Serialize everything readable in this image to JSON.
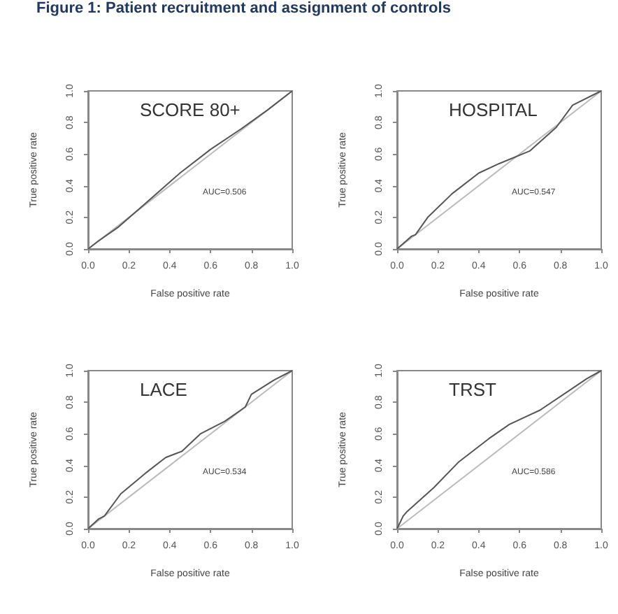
{
  "chart_data": [
    {
      "type": "other",
      "title": "Figure 1: Patient recruitment and assignment of controls"
    },
    {
      "type": "line",
      "title": "SCORE 80+",
      "xlabel": "False positive rate",
      "ylabel": "True positive rate",
      "annotations": [
        "AUC=0.506"
      ],
      "marker": "none",
      "xlim": [
        0,
        1
      ],
      "ylim": [
        0,
        1
      ],
      "xticks": [
        {
          "value": 0,
          "label": "0.0"
        },
        {
          "value": 0.2,
          "label": "0.2"
        },
        {
          "value": 0.4,
          "label": "0.4"
        },
        {
          "value": 0.6,
          "label": "0.6"
        },
        {
          "value": 0.8,
          "label": "0.8"
        },
        {
          "value": 1,
          "label": "1.0"
        }
      ],
      "yticks": [
        {
          "value": 0,
          "label": "0.0"
        },
        {
          "value": 0.2,
          "label": "0.2"
        },
        {
          "value": 0.4,
          "label": "0.4"
        },
        {
          "value": 0.6,
          "label": "0.6"
        },
        {
          "value": 0.8,
          "label": "0.8"
        },
        {
          "value": 1,
          "label": "1.0"
        }
      ],
      "series": [
        {
          "color": "#bbbbbb",
          "x": [
            0,
            1
          ],
          "values": [
            0,
            1
          ]
        },
        {
          "color": "#555555",
          "x": [
            0,
            0.05,
            0.15,
            0.3,
            0.45,
            0.6,
            0.75,
            0.88,
            1
          ],
          "values": [
            0,
            0.05,
            0.14,
            0.31,
            0.48,
            0.63,
            0.76,
            0.88,
            1
          ]
        }
      ]
    },
    {
      "type": "line",
      "title": "HOSPITAL",
      "xlabel": "False positive rate",
      "ylabel": "True positive rate",
      "annotations": [
        "AUC=0.547"
      ],
      "marker": "none",
      "xlim": [
        0,
        1
      ],
      "ylim": [
        0,
        1
      ],
      "xticks": [
        {
          "value": 0,
          "label": "0.0"
        },
        {
          "value": 0.2,
          "label": "0.2"
        },
        {
          "value": 0.4,
          "label": "0.4"
        },
        {
          "value": 0.6,
          "label": "0.6"
        },
        {
          "value": 0.8,
          "label": "0.8"
        },
        {
          "value": 1,
          "label": "1.0"
        }
      ],
      "yticks": [
        {
          "value": 0,
          "label": "0.0"
        },
        {
          "value": 0.2,
          "label": "0.2"
        },
        {
          "value": 0.4,
          "label": "0.4"
        },
        {
          "value": 0.6,
          "label": "0.6"
        },
        {
          "value": 0.8,
          "label": "0.8"
        },
        {
          "value": 1,
          "label": "1.0"
        }
      ],
      "series": [
        {
          "color": "#bbbbbb",
          "x": [
            0,
            1
          ],
          "values": [
            0,
            1
          ]
        },
        {
          "color": "#555555",
          "x": [
            0,
            0.07,
            0.09,
            0.15,
            0.27,
            0.4,
            0.5,
            0.65,
            0.78,
            0.86,
            1
          ],
          "values": [
            0,
            0.08,
            0.09,
            0.2,
            0.35,
            0.48,
            0.54,
            0.62,
            0.77,
            0.91,
            1
          ]
        }
      ]
    },
    {
      "type": "line",
      "title": "LACE",
      "xlabel": "False positive rate",
      "ylabel": "True positive rate",
      "annotations": [
        "AUC=0.534"
      ],
      "marker": "none",
      "xlim": [
        0,
        1
      ],
      "ylim": [
        0,
        1
      ],
      "xticks": [
        {
          "value": 0,
          "label": "0.0"
        },
        {
          "value": 0.2,
          "label": "0.2"
        },
        {
          "value": 0.4,
          "label": "0.4"
        },
        {
          "value": 0.6,
          "label": "0.6"
        },
        {
          "value": 0.8,
          "label": "0.8"
        },
        {
          "value": 1,
          "label": "1.0"
        }
      ],
      "yticks": [
        {
          "value": 0,
          "label": "0.0"
        },
        {
          "value": 0.2,
          "label": "0.2"
        },
        {
          "value": 0.4,
          "label": "0.4"
        },
        {
          "value": 0.6,
          "label": "0.6"
        },
        {
          "value": 0.8,
          "label": "0.8"
        },
        {
          "value": 1,
          "label": "1.0"
        }
      ],
      "series": [
        {
          "color": "#bbbbbb",
          "x": [
            0,
            1
          ],
          "values": [
            0,
            1
          ]
        },
        {
          "color": "#555555",
          "x": [
            0,
            0.05,
            0.08,
            0.16,
            0.28,
            0.38,
            0.46,
            0.55,
            0.67,
            0.77,
            0.8,
            0.91,
            1
          ],
          "values": [
            0,
            0.06,
            0.08,
            0.22,
            0.35,
            0.45,
            0.49,
            0.6,
            0.68,
            0.77,
            0.85,
            0.94,
            1
          ]
        }
      ]
    },
    {
      "type": "line",
      "title": "TRST",
      "xlabel": "False positive rate",
      "ylabel": "True positive rate",
      "annotations": [
        "AUC=0.586"
      ],
      "marker": "none",
      "xlim": [
        0,
        1
      ],
      "ylim": [
        0,
        1
      ],
      "xticks": [
        {
          "value": 0,
          "label": "0.0"
        },
        {
          "value": 0.2,
          "label": "0.2"
        },
        {
          "value": 0.4,
          "label": "0.4"
        },
        {
          "value": 0.6,
          "label": "0.6"
        },
        {
          "value": 0.8,
          "label": "0.8"
        },
        {
          "value": 1,
          "label": "1.0"
        }
      ],
      "yticks": [
        {
          "value": 0,
          "label": "0.0"
        },
        {
          "value": 0.2,
          "label": "0.2"
        },
        {
          "value": 0.4,
          "label": "0.4"
        },
        {
          "value": 0.6,
          "label": "0.6"
        },
        {
          "value": 0.8,
          "label": "0.8"
        },
        {
          "value": 1,
          "label": "1.0"
        }
      ],
      "series": [
        {
          "color": "#bbbbbb",
          "x": [
            0,
            1
          ],
          "values": [
            0,
            1
          ]
        },
        {
          "color": "#555555",
          "x": [
            0,
            0.03,
            0.05,
            0.18,
            0.3,
            0.45,
            0.55,
            0.7,
            0.85,
            0.93,
            1
          ],
          "values": [
            0,
            0.08,
            0.11,
            0.26,
            0.42,
            0.57,
            0.66,
            0.75,
            0.88,
            0.95,
            1
          ]
        }
      ]
    }
  ]
}
